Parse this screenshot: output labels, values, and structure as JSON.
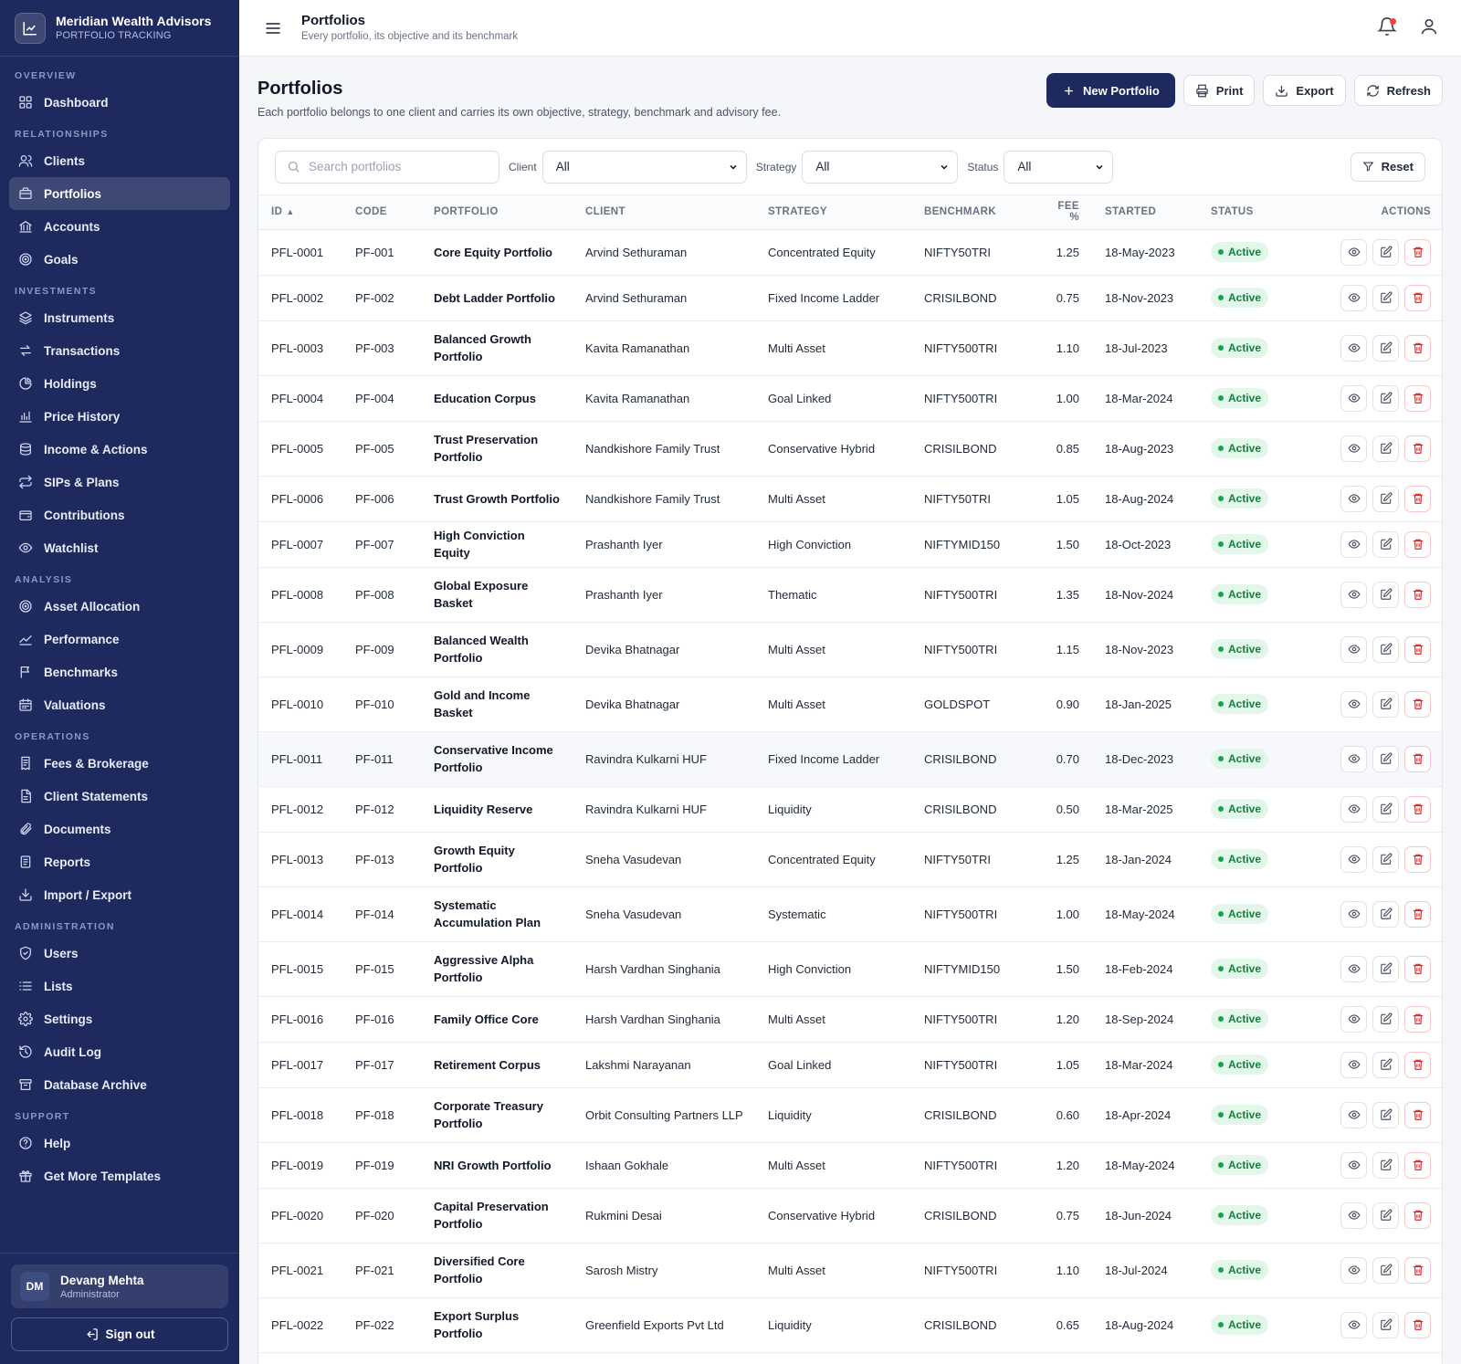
{
  "brand": {
    "name": "Meridian Wealth Advisors",
    "sub": "PORTFOLIO TRACKING"
  },
  "nav": [
    {
      "section": "OVERVIEW",
      "items": [
        {
          "label": "Dashboard",
          "icon": "grid-icon"
        }
      ]
    },
    {
      "section": "RELATIONSHIPS",
      "items": [
        {
          "label": "Clients",
          "icon": "users-icon"
        },
        {
          "label": "Portfolios",
          "icon": "briefcase-icon",
          "active": true
        },
        {
          "label": "Accounts",
          "icon": "bank-icon"
        },
        {
          "label": "Goals",
          "icon": "target-icon"
        }
      ]
    },
    {
      "section": "INVESTMENTS",
      "items": [
        {
          "label": "Instruments",
          "icon": "layers-icon"
        },
        {
          "label": "Transactions",
          "icon": "arrows-icon"
        },
        {
          "label": "Holdings",
          "icon": "pie-icon"
        },
        {
          "label": "Price History",
          "icon": "bar-chart-icon"
        },
        {
          "label": "Income & Actions",
          "icon": "coins-icon"
        },
        {
          "label": "SIPs & Plans",
          "icon": "repeat-icon"
        },
        {
          "label": "Contributions",
          "icon": "wallet-icon"
        },
        {
          "label": "Watchlist",
          "icon": "eye-icon"
        }
      ]
    },
    {
      "section": "ANALYSIS",
      "items": [
        {
          "label": "Asset Allocation",
          "icon": "target-icon"
        },
        {
          "label": "Performance",
          "icon": "trend-icon"
        },
        {
          "label": "Benchmarks",
          "icon": "flag-icon"
        },
        {
          "label": "Valuations",
          "icon": "calendar-icon"
        }
      ]
    },
    {
      "section": "OPERATIONS",
      "items": [
        {
          "label": "Fees & Brokerage",
          "icon": "receipt-icon"
        },
        {
          "label": "Client Statements",
          "icon": "doc-icon"
        },
        {
          "label": "Documents",
          "icon": "paperclip-icon"
        },
        {
          "label": "Reports",
          "icon": "report-icon"
        },
        {
          "label": "Import / Export",
          "icon": "download-icon"
        }
      ]
    },
    {
      "section": "ADMINISTRATION",
      "items": [
        {
          "label": "Users",
          "icon": "shield-icon"
        },
        {
          "label": "Lists",
          "icon": "list-icon"
        },
        {
          "label": "Settings",
          "icon": "gear-icon"
        },
        {
          "label": "Audit Log",
          "icon": "history-icon"
        },
        {
          "label": "Database Archive",
          "icon": "archive-icon"
        }
      ]
    },
    {
      "section": "SUPPORT",
      "items": [
        {
          "label": "Help",
          "icon": "help-icon"
        },
        {
          "label": "Get More Templates",
          "icon": "gift-icon"
        }
      ]
    }
  ],
  "user": {
    "initials": "DM",
    "name": "Devang Mehta",
    "role": "Administrator",
    "signout": "Sign out"
  },
  "topbar": {
    "title": "Portfolios",
    "subtitle": "Every portfolio, its objective and its benchmark"
  },
  "page": {
    "title": "Portfolios",
    "subtitle": "Each portfolio belongs to one client and carries its own objective, strategy, benchmark and advisory fee."
  },
  "buttons": {
    "new": "New Portfolio",
    "print": "Print",
    "export": "Export",
    "refresh": "Refresh",
    "reset": "Reset"
  },
  "filters": {
    "search_placeholder": "Search portfolios",
    "client_label": "Client",
    "client_value": "All",
    "strategy_label": "Strategy",
    "strategy_value": "All",
    "status_label": "Status",
    "status_value": "All"
  },
  "columns": [
    "ID",
    "CODE",
    "PORTFOLIO",
    "CLIENT",
    "STRATEGY",
    "BENCHMARK",
    "FEE %",
    "STARTED",
    "STATUS",
    "ACTIONS"
  ],
  "rows": [
    {
      "id": "PFL-0001",
      "code": "PF-001",
      "portfolio": "Core Equity Portfolio",
      "client": "Arvind Sethuraman",
      "strategy": "Concentrated Equity",
      "benchmark": "NIFTY50TRI",
      "fee": "1.25",
      "started": "18-May-2023",
      "status": "Active"
    },
    {
      "id": "PFL-0002",
      "code": "PF-002",
      "portfolio": "Debt Ladder Portfolio",
      "client": "Arvind Sethuraman",
      "strategy": "Fixed Income Ladder",
      "benchmark": "CRISILBOND",
      "fee": "0.75",
      "started": "18-Nov-2023",
      "status": "Active"
    },
    {
      "id": "PFL-0003",
      "code": "PF-003",
      "portfolio": "Balanced Growth Portfolio",
      "client": "Kavita Ramanathan",
      "strategy": "Multi Asset",
      "benchmark": "NIFTY500TRI",
      "fee": "1.10",
      "started": "18-Jul-2023",
      "status": "Active"
    },
    {
      "id": "PFL-0004",
      "code": "PF-004",
      "portfolio": "Education Corpus",
      "client": "Kavita Ramanathan",
      "strategy": "Goal Linked",
      "benchmark": "NIFTY500TRI",
      "fee": "1.00",
      "started": "18-Mar-2024",
      "status": "Active"
    },
    {
      "id": "PFL-0005",
      "code": "PF-005",
      "portfolio": "Trust Preservation Portfolio",
      "client": "Nandkishore Family Trust",
      "strategy": "Conservative Hybrid",
      "benchmark": "CRISILBOND",
      "fee": "0.85",
      "started": "18-Aug-2023",
      "status": "Active"
    },
    {
      "id": "PFL-0006",
      "code": "PF-006",
      "portfolio": "Trust Growth Portfolio",
      "client": "Nandkishore Family Trust",
      "strategy": "Multi Asset",
      "benchmark": "NIFTY50TRI",
      "fee": "1.05",
      "started": "18-Aug-2024",
      "status": "Active"
    },
    {
      "id": "PFL-0007",
      "code": "PF-007",
      "portfolio": "High Conviction Equity",
      "client": "Prashanth Iyer",
      "strategy": "High Conviction",
      "benchmark": "NIFTYMID150",
      "fee": "1.50",
      "started": "18-Oct-2023",
      "status": "Active"
    },
    {
      "id": "PFL-0008",
      "code": "PF-008",
      "portfolio": "Global Exposure Basket",
      "client": "Prashanth Iyer",
      "strategy": "Thematic",
      "benchmark": "NIFTY500TRI",
      "fee": "1.35",
      "started": "18-Nov-2024",
      "status": "Active"
    },
    {
      "id": "PFL-0009",
      "code": "PF-009",
      "portfolio": "Balanced Wealth Portfolio",
      "client": "Devika Bhatnagar",
      "strategy": "Multi Asset",
      "benchmark": "NIFTY500TRI",
      "fee": "1.15",
      "started": "18-Nov-2023",
      "status": "Active"
    },
    {
      "id": "PFL-0010",
      "code": "PF-010",
      "portfolio": "Gold and Income Basket",
      "client": "Devika Bhatnagar",
      "strategy": "Multi Asset",
      "benchmark": "GOLDSPOT",
      "fee": "0.90",
      "started": "18-Jan-2025",
      "status": "Active"
    },
    {
      "id": "PFL-0011",
      "code": "PF-011",
      "portfolio": "Conservative Income Portfolio",
      "client": "Ravindra Kulkarni HUF",
      "strategy": "Fixed Income Ladder",
      "benchmark": "CRISILBOND",
      "fee": "0.70",
      "started": "18-Dec-2023",
      "status": "Active"
    },
    {
      "id": "PFL-0012",
      "code": "PF-012",
      "portfolio": "Liquidity Reserve",
      "client": "Ravindra Kulkarni HUF",
      "strategy": "Liquidity",
      "benchmark": "CRISILBOND",
      "fee": "0.50",
      "started": "18-Mar-2025",
      "status": "Active"
    },
    {
      "id": "PFL-0013",
      "code": "PF-013",
      "portfolio": "Growth Equity Portfolio",
      "client": "Sneha Vasudevan",
      "strategy": "Concentrated Equity",
      "benchmark": "NIFTY50TRI",
      "fee": "1.25",
      "started": "18-Jan-2024",
      "status": "Active"
    },
    {
      "id": "PFL-0014",
      "code": "PF-014",
      "portfolio": "Systematic Accumulation Plan",
      "client": "Sneha Vasudevan",
      "strategy": "Systematic",
      "benchmark": "NIFTY500TRI",
      "fee": "1.00",
      "started": "18-May-2024",
      "status": "Active"
    },
    {
      "id": "PFL-0015",
      "code": "PF-015",
      "portfolio": "Aggressive Alpha Portfolio",
      "client": "Harsh Vardhan Singhania",
      "strategy": "High Conviction",
      "benchmark": "NIFTYMID150",
      "fee": "1.50",
      "started": "18-Feb-2024",
      "status": "Active"
    },
    {
      "id": "PFL-0016",
      "code": "PF-016",
      "portfolio": "Family Office Core",
      "client": "Harsh Vardhan Singhania",
      "strategy": "Multi Asset",
      "benchmark": "NIFTY500TRI",
      "fee": "1.20",
      "started": "18-Sep-2024",
      "status": "Active"
    },
    {
      "id": "PFL-0017",
      "code": "PF-017",
      "portfolio": "Retirement Corpus",
      "client": "Lakshmi Narayanan",
      "strategy": "Goal Linked",
      "benchmark": "NIFTY500TRI",
      "fee": "1.05",
      "started": "18-Mar-2024",
      "status": "Active"
    },
    {
      "id": "PFL-0018",
      "code": "PF-018",
      "portfolio": "Corporate Treasury Portfolio",
      "client": "Orbit Consulting Partners LLP",
      "strategy": "Liquidity",
      "benchmark": "CRISILBOND",
      "fee": "0.60",
      "started": "18-Apr-2024",
      "status": "Active"
    },
    {
      "id": "PFL-0019",
      "code": "PF-019",
      "portfolio": "NRI Growth Portfolio",
      "client": "Ishaan Gokhale",
      "strategy": "Multi Asset",
      "benchmark": "NIFTY500TRI",
      "fee": "1.20",
      "started": "18-May-2024",
      "status": "Active"
    },
    {
      "id": "PFL-0020",
      "code": "PF-020",
      "portfolio": "Capital Preservation Portfolio",
      "client": "Rukmini Desai",
      "strategy": "Conservative Hybrid",
      "benchmark": "CRISILBOND",
      "fee": "0.75",
      "started": "18-Jun-2024",
      "status": "Active"
    },
    {
      "id": "PFL-0021",
      "code": "PF-021",
      "portfolio": "Diversified Core Portfolio",
      "client": "Sarosh Mistry",
      "strategy": "Multi Asset",
      "benchmark": "NIFTY500TRI",
      "fee": "1.10",
      "started": "18-Jul-2024",
      "status": "Active"
    },
    {
      "id": "PFL-0022",
      "code": "PF-022",
      "portfolio": "Export Surplus Portfolio",
      "client": "Greenfield Exports Pvt Ltd",
      "strategy": "Liquidity",
      "benchmark": "CRISILBOND",
      "fee": "0.65",
      "started": "18-Aug-2024",
      "status": "Active"
    }
  ],
  "colors": {
    "sidebar": "#1e2a5e",
    "primary": "#1e2a5e",
    "active_badge": "#15803d",
    "danger": "#dc2626"
  }
}
